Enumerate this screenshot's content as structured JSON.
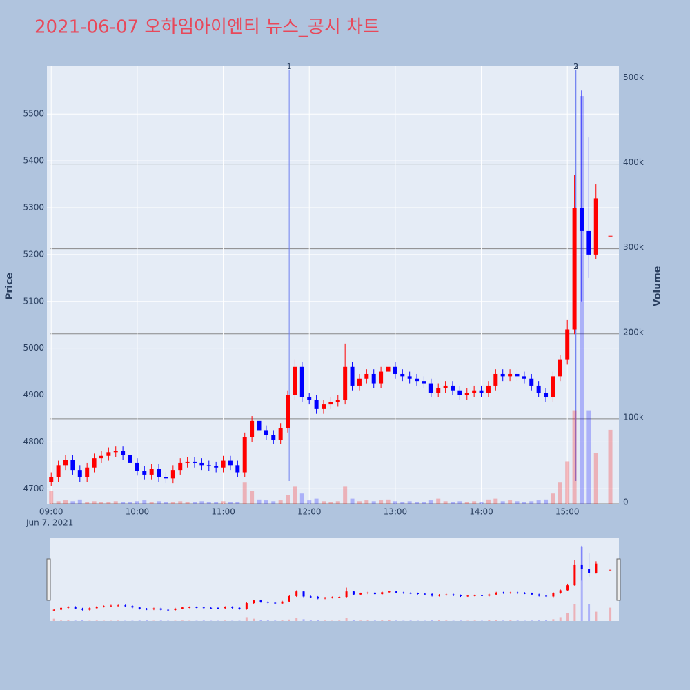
{
  "chart_data": {
    "type": "candlestick",
    "title": "2021-06-07 오하임아이엔티 뉴스_공시 차트",
    "x": [
      "2021-06-07 09:00",
      "2021-06-07 09:05",
      "2021-06-07 09:10",
      "2021-06-07 09:15",
      "2021-06-07 09:20",
      "2021-06-07 09:25",
      "2021-06-07 09:30",
      "2021-06-07 09:35",
      "2021-06-07 09:40",
      "2021-06-07 09:45",
      "2021-06-07 09:50",
      "2021-06-07 09:55",
      "2021-06-07 10:00",
      "2021-06-07 10:05",
      "2021-06-07 10:10",
      "2021-06-07 10:15",
      "2021-06-07 10:20",
      "2021-06-07 10:25",
      "2021-06-07 10:30",
      "2021-06-07 10:35",
      "2021-06-07 10:40",
      "2021-06-07 10:45",
      "2021-06-07 10:50",
      "2021-06-07 10:55",
      "2021-06-07 11:00",
      "2021-06-07 11:05",
      "2021-06-07 11:10",
      "2021-06-07 11:15",
      "2021-06-07 11:20",
      "2021-06-07 11:25",
      "2021-06-07 11:30",
      "2021-06-07 11:35",
      "2021-06-07 11:40",
      "2021-06-07 11:45",
      "2021-06-07 11:50",
      "2021-06-07 11:55",
      "2021-06-07 12:00",
      "2021-06-07 12:05",
      "2021-06-07 12:10",
      "2021-06-07 12:15",
      "2021-06-07 12:20",
      "2021-06-07 12:25",
      "2021-06-07 12:30",
      "2021-06-07 12:35",
      "2021-06-07 12:40",
      "2021-06-07 12:45",
      "2021-06-07 12:50",
      "2021-06-07 12:55",
      "2021-06-07 13:00",
      "2021-06-07 13:05",
      "2021-06-07 13:10",
      "2021-06-07 13:15",
      "2021-06-07 13:20",
      "2021-06-07 13:25",
      "2021-06-07 13:30",
      "2021-06-07 13:35",
      "2021-06-07 13:40",
      "2021-06-07 13:45",
      "2021-06-07 13:50",
      "2021-06-07 13:55",
      "2021-06-07 14:00",
      "2021-06-07 14:05",
      "2021-06-07 14:10",
      "2021-06-07 14:15",
      "2021-06-07 14:20",
      "2021-06-07 14:25",
      "2021-06-07 14:30",
      "2021-06-07 14:35",
      "2021-06-07 14:40",
      "2021-06-07 14:45",
      "2021-06-07 14:50",
      "2021-06-07 14:55",
      "2021-06-07 15:00",
      "2021-06-07 15:05",
      "2021-06-07 15:10",
      "2021-06-07 15:15",
      "2021-06-07 15:20",
      "2021-06-07 15:30"
    ],
    "open": [
      4715,
      4725,
      4750,
      4762,
      4740,
      4725,
      4745,
      4765,
      4770,
      4778,
      4780,
      4772,
      4755,
      4738,
      4730,
      4742,
      4725,
      4722,
      4740,
      4755,
      4758,
      4755,
      4750,
      4748,
      4745,
      4760,
      4750,
      4735,
      4810,
      4845,
      4825,
      4815,
      4805,
      4830,
      4900,
      4960,
      4895,
      4890,
      4870,
      4880,
      4885,
      4890,
      4960,
      4920,
      4935,
      4945,
      4925,
      4950,
      4960,
      4945,
      4940,
      4935,
      4930,
      4925,
      4905,
      4915,
      4920,
      4910,
      4900,
      4905,
      4910,
      4905,
      4920,
      4945,
      4940,
      4945,
      4940,
      4935,
      4920,
      4905,
      4895,
      4940,
      4975,
      5040,
      5300,
      5250,
      5200,
      5240
    ],
    "high": [
      4735,
      4760,
      4772,
      4772,
      4750,
      4755,
      4775,
      4780,
      4788,
      4790,
      4790,
      4782,
      4765,
      4748,
      4752,
      4752,
      4735,
      4750,
      4765,
      4768,
      4768,
      4765,
      4760,
      4758,
      4770,
      4770,
      4760,
      4820,
      4855,
      4855,
      4835,
      4825,
      4840,
      4910,
      4975,
      4970,
      4905,
      4900,
      4890,
      4895,
      4900,
      5010,
      4970,
      4945,
      4955,
      4955,
      4960,
      4970,
      4970,
      4955,
      4950,
      4945,
      4940,
      4935,
      4925,
      4930,
      4930,
      4920,
      4915,
      4920,
      4920,
      4930,
      4955,
      4955,
      4955,
      4955,
      4950,
      4945,
      4930,
      4915,
      4950,
      4985,
      5060,
      5370,
      5550,
      5450,
      5350,
      5240
    ],
    "low": [
      4705,
      4715,
      4740,
      4730,
      4715,
      4715,
      4735,
      4755,
      4760,
      4768,
      4762,
      4745,
      4728,
      4720,
      4720,
      4715,
      4712,
      4712,
      4730,
      4745,
      4745,
      4740,
      4738,
      4735,
      4735,
      4740,
      4725,
      4725,
      4800,
      4815,
      4805,
      4795,
      4795,
      4820,
      4890,
      4885,
      4880,
      4860,
      4860,
      4870,
      4875,
      4880,
      4910,
      4910,
      4925,
      4915,
      4915,
      4940,
      4935,
      4930,
      4925,
      4920,
      4915,
      4895,
      4895,
      4905,
      4900,
      4890,
      4890,
      4895,
      4895,
      4895,
      4910,
      4930,
      4930,
      4930,
      4925,
      4910,
      4895,
      4885,
      4885,
      4930,
      4965,
      5030,
      5100,
      5150,
      5190,
      5240
    ],
    "close": [
      4725,
      4750,
      4762,
      4740,
      4725,
      4745,
      4765,
      4770,
      4778,
      4780,
      4772,
      4755,
      4738,
      4730,
      4742,
      4725,
      4722,
      4740,
      4755,
      4758,
      4755,
      4750,
      4748,
      4745,
      4760,
      4750,
      4735,
      4810,
      4845,
      4825,
      4815,
      4805,
      4830,
      4900,
      4960,
      4895,
      4890,
      4870,
      4880,
      4885,
      4890,
      4960,
      4920,
      4935,
      4945,
      4925,
      4950,
      4960,
      4945,
      4940,
      4935,
      4930,
      4925,
      4905,
      4915,
      4920,
      4910,
      4900,
      4905,
      4910,
      4905,
      4920,
      4945,
      4940,
      4945,
      4940,
      4935,
      4920,
      4905,
      4895,
      4940,
      4975,
      5040,
      5300,
      5250,
      5200,
      5320,
      5240
    ],
    "volume": [
      15000,
      3000,
      4000,
      3000,
      5000,
      2000,
      3000,
      2000,
      2000,
      3000,
      2000,
      2000,
      3000,
      4000,
      2000,
      3000,
      2000,
      2000,
      3000,
      2000,
      2000,
      3000,
      2000,
      2000,
      3000,
      2000,
      2000,
      25000,
      15000,
      5000,
      4000,
      3000,
      4000,
      10000,
      20000,
      12000,
      4000,
      6000,
      3000,
      2000,
      3000,
      20000,
      6000,
      3000,
      4000,
      3000,
      4000,
      5000,
      3000,
      2000,
      3000,
      2000,
      2000,
      4000,
      6000,
      3000,
      2000,
      3000,
      2000,
      3000,
      2000,
      5000,
      6000,
      3000,
      4000,
      3000,
      2000,
      3000,
      4000,
      5000,
      12000,
      25000,
      50000,
      110000,
      480000,
      110000,
      60000,
      87000
    ],
    "increasing_color": "#ff0000",
    "decreasing_color": "#0000ff",
    "xlim": [
      "2021-06-07 08:57",
      "2021-06-07 15:36"
    ],
    "xticks": [
      {
        "value": "2021-06-07 09:00",
        "label": "09:00"
      },
      {
        "value": "2021-06-07 10:00",
        "label": "10:00"
      },
      {
        "value": "2021-06-07 11:00",
        "label": "11:00"
      },
      {
        "value": "2021-06-07 12:00",
        "label": "12:00"
      },
      {
        "value": "2021-06-07 13:00",
        "label": "13:00"
      },
      {
        "value": "2021-06-07 14:00",
        "label": "14:00"
      },
      {
        "value": "2021-06-07 15:00",
        "label": "15:00"
      }
    ],
    "x_date_label": "Jun 7, 2021",
    "ylim": [
      4668,
      5602
    ],
    "yticks": [
      4700,
      4800,
      4900,
      5000,
      5100,
      5200,
      5300,
      5400,
      5500
    ],
    "y2lim": [
      0,
      515000
    ],
    "y2ticks": [
      0,
      {
        "value": 100000,
        "label": "100k"
      },
      {
        "value": 200000,
        "label": "200k"
      },
      {
        "value": 300000,
        "label": "300k"
      },
      {
        "value": 400000,
        "label": "400k"
      },
      {
        "value": 500000,
        "label": "500k"
      }
    ],
    "ylabel": "Price",
    "y2label": "Volume",
    "annotations": [
      {
        "x": "2021-06-07 11:46",
        "text": "1"
      },
      {
        "x": "2021-06-07 15:06",
        "text": "2"
      },
      {
        "x": "2021-06-07 15:06",
        "text": "3"
      }
    ],
    "grid": true,
    "rangeslider": true
  }
}
